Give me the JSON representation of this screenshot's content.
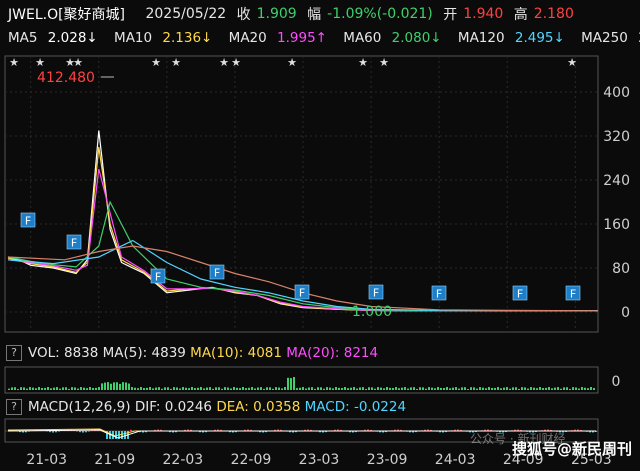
{
  "header": {
    "ticker": "JWEL.O[聚好商城]",
    "date": "2025/05/22",
    "close_label": "收",
    "close_value": "1.909",
    "change_label": "幅",
    "change_value": "-1.09%(-0.021)",
    "open_label": "开",
    "open_value": "1.940",
    "high_label": "高",
    "high_value": "2.180"
  },
  "ma_row": [
    {
      "label": "MA5",
      "value": "2.028↓",
      "cls": "ma5"
    },
    {
      "label": "MA10",
      "value": "2.136↓",
      "cls": "ma10"
    },
    {
      "label": "MA20",
      "value": "1.995↑",
      "cls": "ma20"
    },
    {
      "label": "MA60",
      "value": "2.080↓",
      "cls": "ma60"
    },
    {
      "label": "MA120",
      "value": "2.495↓",
      "cls": "ma120"
    },
    {
      "label": "MA250",
      "value": "2.",
      "cls": "ma250"
    }
  ],
  "vol_panel": {
    "q": "?",
    "vol_label": "VOL:",
    "vol_value": "8838",
    "ma5_label": "MA(5):",
    "ma5_value": "4839",
    "ma10_label": "MA(10):",
    "ma10_value": "4081",
    "ma20_label": "MA(20):",
    "ma20_value": "8214"
  },
  "macd_panel": {
    "q": "?",
    "macd_label": "MACD(12,26,9)",
    "dif_label": "DIF:",
    "dif_value": "0.0246",
    "dea_label": "DEA:",
    "dea_value": "0.0358",
    "macd_val_label": "MACD:",
    "macd_value": "-0.0224"
  },
  "watermark": "搜狐号@新民周刊",
  "watermark2": "公众号 · 新刊财经",
  "chart_data": {
    "type": "line",
    "title": "JWEL.O[聚好商城]",
    "y_ticks": [
      400,
      320,
      240,
      160,
      80,
      0
    ],
    "ylim": [
      0,
      440
    ],
    "x_tick_labels": [
      "21-03",
      "21-09",
      "22-03",
      "22-09",
      "23-03",
      "23-09",
      "24-03",
      "24-09",
      "25-03"
    ],
    "vol_y_tick": "0",
    "annotations": [
      {
        "text": "412.480",
        "x": "21-09",
        "y": 412.48
      },
      {
        "text": "1.000",
        "x": "23-09",
        "y": 1.0
      }
    ],
    "flag_markers": [
      "F",
      "F",
      "F",
      "F",
      "F",
      "F",
      "F",
      "F",
      "F"
    ],
    "star_markers": 10,
    "series": [
      {
        "name": "MA5",
        "color": "#ffffff",
        "x": [
          "21-01",
          "21-02",
          "21-03",
          "21-05",
          "21-07",
          "21-08",
          "21-09",
          "21-10",
          "21-11",
          "22-01",
          "22-03",
          "22-05",
          "22-07",
          "22-09",
          "22-11",
          "23-01",
          "23-03",
          "23-06",
          "23-09",
          "24-03",
          "24-09",
          "25-05"
        ],
        "y": [
          100,
          95,
          85,
          80,
          70,
          95,
          330,
          150,
          90,
          70,
          35,
          40,
          45,
          35,
          30,
          15,
          8,
          5,
          3,
          2,
          2,
          2
        ]
      },
      {
        "name": "MA10",
        "color": "#ffd84a",
        "x": [
          "21-01",
          "21-03",
          "21-05",
          "21-07",
          "21-08",
          "21-09",
          "21-10",
          "21-11",
          "22-01",
          "22-03",
          "22-05",
          "22-07",
          "22-09",
          "22-11",
          "23-01",
          "23-03",
          "23-06",
          "23-09",
          "24-03",
          "24-09",
          "25-05"
        ],
        "y": [
          98,
          88,
          82,
          72,
          90,
          300,
          160,
          95,
          72,
          38,
          42,
          44,
          36,
          30,
          16,
          9,
          5,
          3,
          2,
          2,
          2
        ]
      },
      {
        "name": "MA20",
        "color": "#ff4cff",
        "x": [
          "21-01",
          "21-03",
          "21-05",
          "21-07",
          "21-08",
          "21-09",
          "21-10",
          "21-11",
          "22-01",
          "22-03",
          "22-05",
          "22-07",
          "22-09",
          "22-11",
          "23-01",
          "23-03",
          "23-06",
          "23-09",
          "24-03",
          "24-09",
          "25-05"
        ],
        "y": [
          95,
          90,
          84,
          76,
          85,
          260,
          180,
          100,
          75,
          42,
          42,
          43,
          38,
          30,
          18,
          10,
          6,
          3,
          2,
          2,
          2
        ]
      },
      {
        "name": "MA60",
        "color": "#3fd06b",
        "x": [
          "21-01",
          "21-03",
          "21-05",
          "21-07",
          "21-09",
          "21-10",
          "21-12",
          "22-03",
          "22-06",
          "22-09",
          "22-12",
          "23-03",
          "23-06",
          "23-09",
          "24-03",
          "24-09",
          "25-05"
        ],
        "y": [
          100,
          92,
          86,
          82,
          120,
          200,
          120,
          60,
          45,
          40,
          30,
          15,
          8,
          4,
          2,
          2,
          2
        ]
      },
      {
        "name": "MA120",
        "color": "#50d6ff",
        "x": [
          "21-01",
          "21-05",
          "21-09",
          "21-12",
          "22-03",
          "22-06",
          "22-09",
          "22-12",
          "23-03",
          "23-06",
          "23-09",
          "24-03",
          "24-09",
          "25-05"
        ],
        "y": [
          95,
          88,
          100,
          130,
          90,
          60,
          45,
          35,
          20,
          10,
          5,
          3,
          2,
          2
        ]
      },
      {
        "name": "MA250",
        "color": "#d9826b",
        "x": [
          "21-01",
          "21-06",
          "21-09",
          "21-12",
          "22-03",
          "22-06",
          "22-09",
          "22-12",
          "23-03",
          "23-06",
          "23-09",
          "24-03",
          "24-09",
          "25-05"
        ],
        "y": [
          100,
          95,
          110,
          120,
          110,
          90,
          70,
          55,
          35,
          20,
          10,
          4,
          3,
          2
        ]
      }
    ]
  },
  "colors": {
    "up": "#ff4141",
    "down": "#3fd06b",
    "grid": "#2a2a2a",
    "axis": "#555555",
    "bg": "#0b0b0b"
  }
}
